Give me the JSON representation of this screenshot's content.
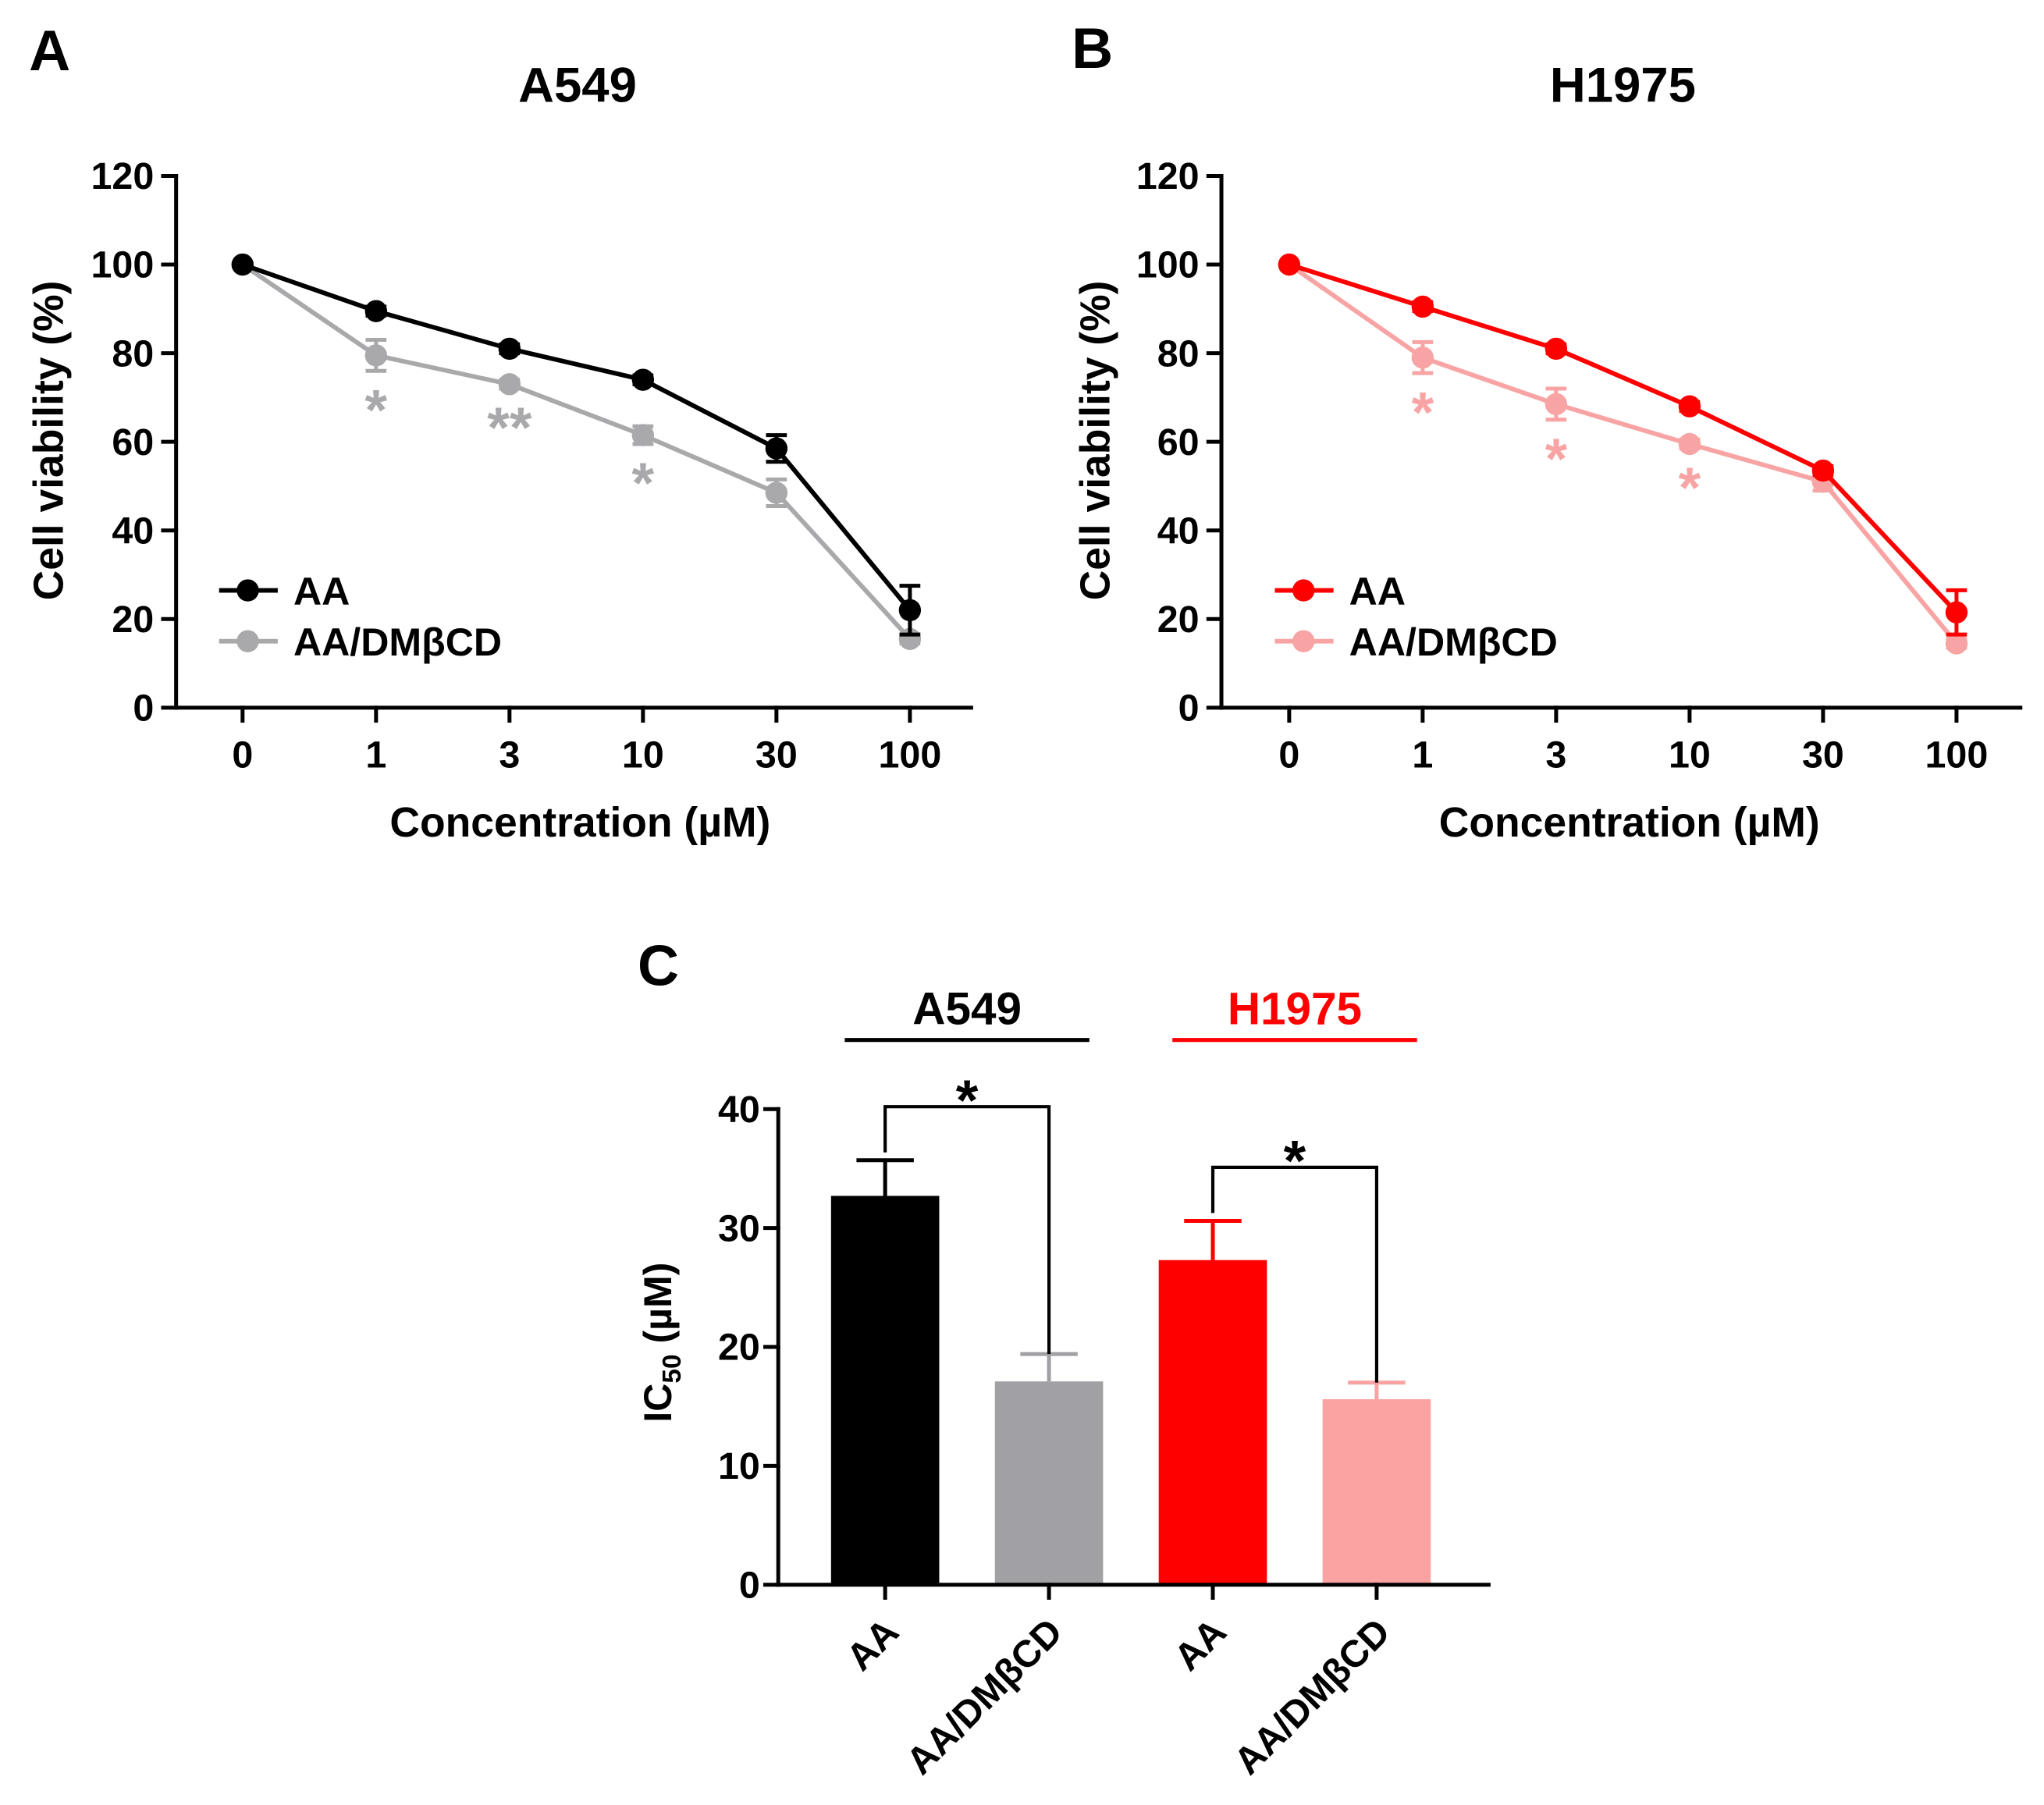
{
  "chart_data": [
    {
      "panel_label": "A",
      "type": "line",
      "title": "A549",
      "xlabel": "Concentration (µM)",
      "ylabel": "Cell viability (%)",
      "categories": [
        "0",
        "1",
        "3",
        "10",
        "30",
        "100"
      ],
      "ylim": [
        0,
        120
      ],
      "yticks": [
        0,
        20,
        40,
        60,
        80,
        100,
        120
      ],
      "series": [
        {
          "name": "AA",
          "color": "#000000",
          "values": [
            100,
            89.5,
            81,
            74,
            58.5,
            22
          ],
          "errors": [
            0,
            1,
            1,
            1,
            3,
            5.5
          ]
        },
        {
          "name": "AA/DMβCD",
          "color": "#a9a9ab",
          "values": [
            100,
            79.5,
            73,
            61.5,
            48.5,
            15.5
          ],
          "errors": [
            0,
            3.5,
            1,
            2,
            3,
            1
          ]
        }
      ],
      "significance": [
        {
          "series": 1,
          "category_index": 1,
          "text": "*"
        },
        {
          "series": 1,
          "category_index": 2,
          "text": "**"
        },
        {
          "series": 1,
          "category_index": 3,
          "text": "*"
        }
      ]
    },
    {
      "panel_label": "B",
      "type": "line",
      "title": "H1975",
      "xlabel": "Concentration (µM)",
      "ylabel": "Cell viability (%)",
      "categories": [
        "0",
        "1",
        "3",
        "10",
        "30",
        "100"
      ],
      "ylim": [
        0,
        120
      ],
      "yticks": [
        0,
        20,
        40,
        60,
        80,
        100,
        120
      ],
      "series": [
        {
          "name": "AA",
          "color": "#ff0000",
          "values": [
            100,
            90.5,
            81,
            68,
            53.5,
            21.5
          ],
          "errors": [
            0,
            1,
            1,
            1,
            1,
            5
          ]
        },
        {
          "name": "AA/DMβCD",
          "color": "#f9a4a4",
          "values": [
            100,
            79,
            68.5,
            59.5,
            51,
            14.5
          ],
          "errors": [
            0,
            3.5,
            3.5,
            1,
            2,
            1
          ]
        }
      ],
      "significance": [
        {
          "series": 1,
          "category_index": 1,
          "text": "*"
        },
        {
          "series": 1,
          "category_index": 2,
          "text": "*"
        },
        {
          "series": 1,
          "category_index": 3,
          "text": "*"
        }
      ]
    },
    {
      "panel_label": "C",
      "type": "bar",
      "ylabel": {
        "main": "IC",
        "subscript": "50",
        "unit": " (µM)"
      },
      "categories": [
        "AA",
        "AA/DMβCD",
        "AA",
        "AA/DMβCD"
      ],
      "values": [
        32.7,
        17.1,
        27.3,
        15.6
      ],
      "errors": [
        3.0,
        2.3,
        3.3,
        1.4
      ],
      "colors": [
        "#000000",
        "#a1a1a5",
        "#ff0000",
        "#fba2a2"
      ],
      "ylim": [
        0,
        40
      ],
      "yticks": [
        0,
        10,
        20,
        30,
        40
      ],
      "groups": [
        {
          "label": "A549",
          "color": "#000000",
          "category_indices": [
            0,
            1
          ]
        },
        {
          "label": "H1975",
          "color": "#ff0000",
          "category_indices": [
            2,
            3
          ]
        }
      ],
      "significance": [
        {
          "from": 0,
          "to": 1,
          "text": "*"
        },
        {
          "from": 2,
          "to": 3,
          "text": "*"
        }
      ]
    }
  ]
}
